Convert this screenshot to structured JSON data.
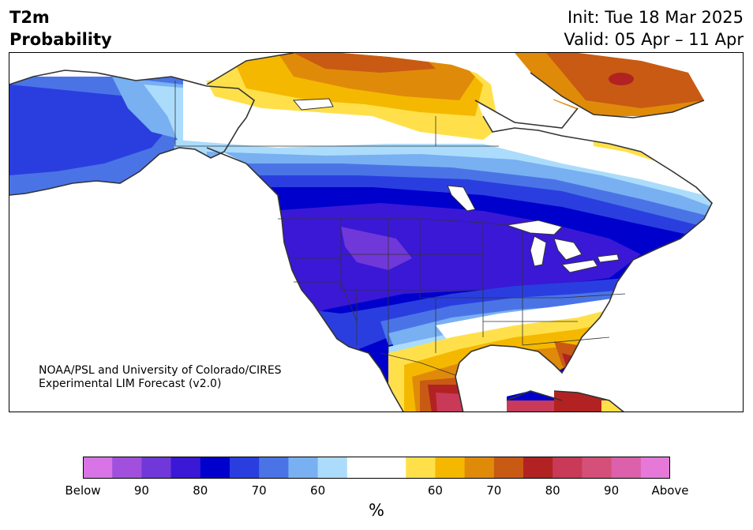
{
  "header": {
    "title_line1": "T2m",
    "title_line2": "Probability",
    "init": "Init: Tue 18 Mar 2025",
    "valid": "Valid: 05 Apr – 11 Apr"
  },
  "credit": {
    "line1": "NOAA/PSL and University of Colorado/CIRES",
    "line2": "Experimental LIM Forecast (v2.0)"
  },
  "colorbar": {
    "colors": [
      "#d874e6",
      "#a050dc",
      "#7038d8",
      "#3a18d6",
      "#0000cd",
      "#2a3ee0",
      "#4a74e6",
      "#78b0f2",
      "#acdcfc",
      "#ffffff",
      "#ffffff",
      "#ffe04a",
      "#f5b800",
      "#e08a0a",
      "#c85a14",
      "#b22222",
      "#c83a58",
      "#d45078",
      "#dc60aa",
      "#e678d8"
    ],
    "ticks": [
      "Below",
      "90",
      "80",
      "70",
      "60",
      "60",
      "70",
      "80",
      "90",
      "Above"
    ],
    "unit": "%"
  },
  "palette": {
    "ocean": "#ffffff",
    "border": "#333333"
  }
}
